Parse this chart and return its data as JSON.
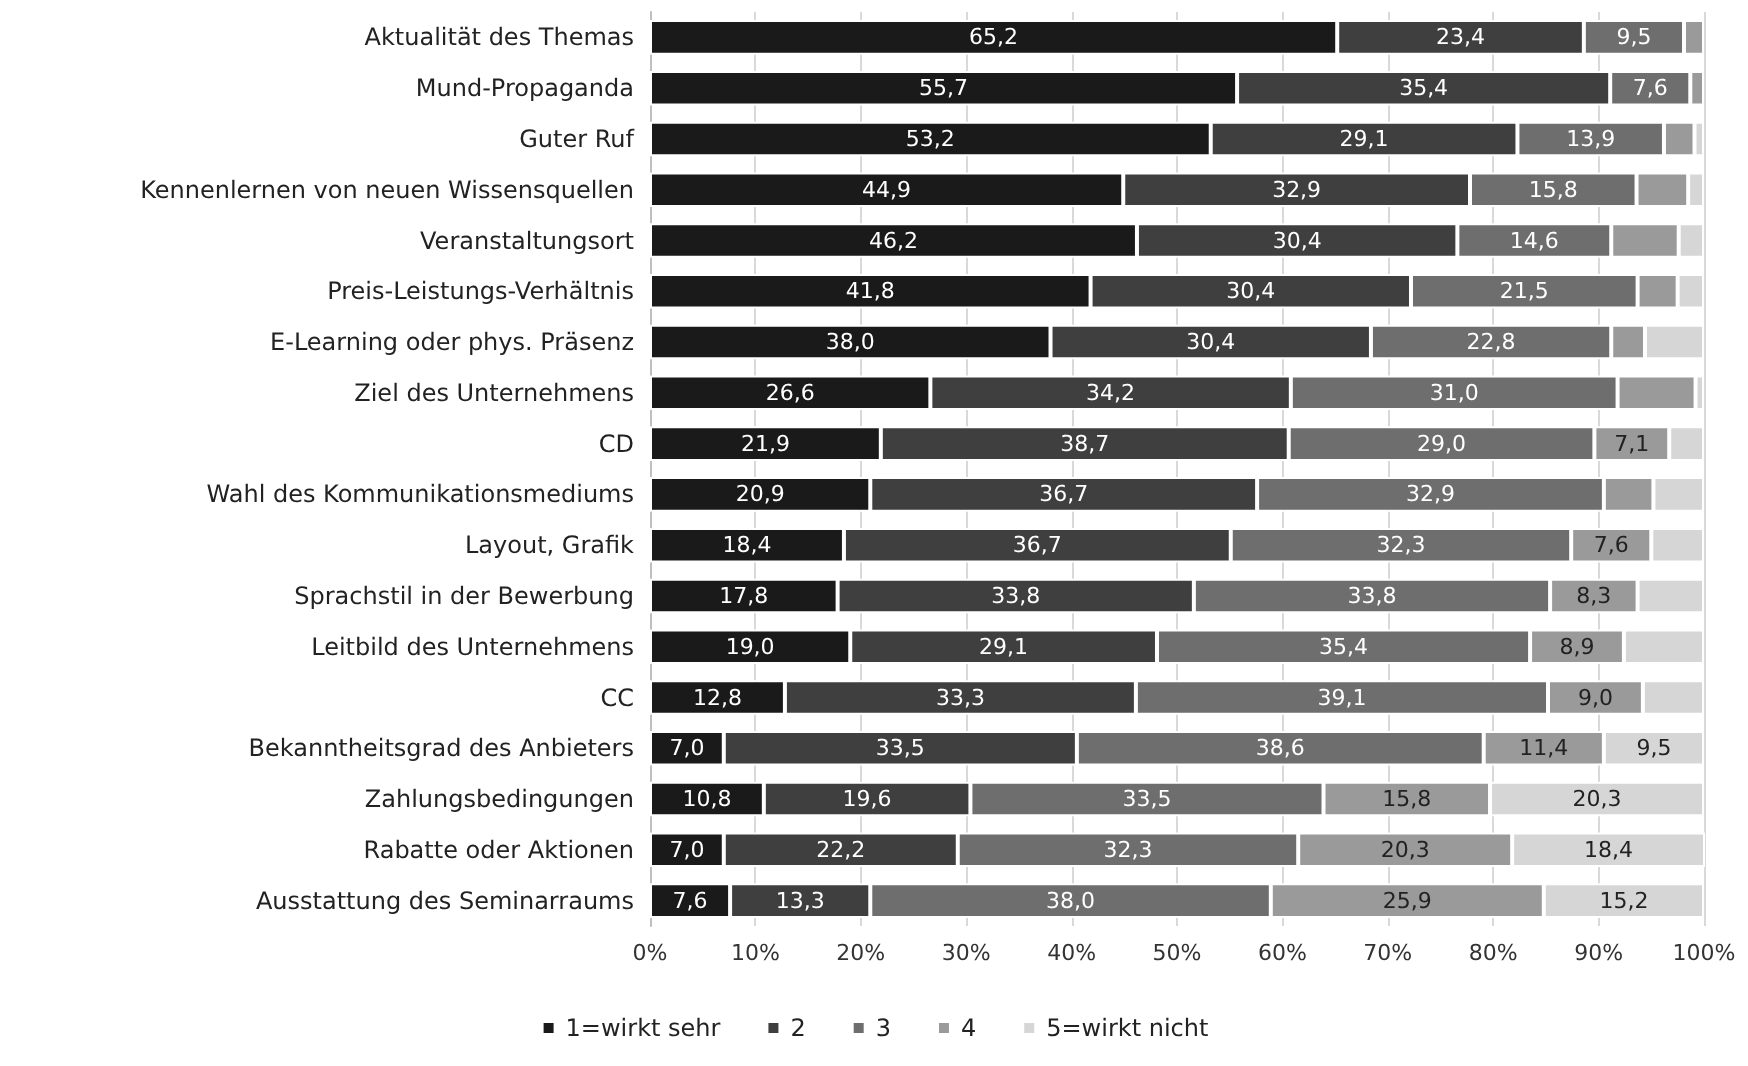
{
  "chart_data": {
    "type": "bar",
    "orientation": "horizontal",
    "stacked": true,
    "categories": [
      "Aktualität des Themas",
      "Mund-Propaganda",
      "Guter Ruf",
      "Kennenlernen von neuen Wissensquellen",
      "Veranstaltungsort",
      "Preis-Leistungs-Verhältnis",
      "E-Learning oder phys. Präsenz",
      "Ziel des Unternehmens",
      "CD",
      "Wahl des Kommunikationsmediums",
      "Layout, Grafik",
      "Sprachstil in der Bewerbung",
      "Leitbild des Unternehmens",
      "CC",
      "Bekanntheitsgrad des Anbieters",
      "Zahlungsbedingungen",
      "Rabatte oder Aktionen",
      "Ausstattung des Seminarraums"
    ],
    "series": [
      {
        "name": "1=wirkt sehr",
        "color": "#1a1a1a",
        "values": [
          65.2,
          55.7,
          53.2,
          44.9,
          46.2,
          41.8,
          38.0,
          26.6,
          21.9,
          20.9,
          18.4,
          17.8,
          19.0,
          12.8,
          7.0,
          10.8,
          7.0,
          7.6
        ],
        "value_labels": [
          "65,2",
          "55,7",
          "53,2",
          "44,9",
          "46,2",
          "41,8",
          "38,0",
          "26,6",
          "21,9",
          "20,9",
          "18,4",
          "17,8",
          "19,0",
          "12,8",
          "7,0",
          "10,8",
          "7,0",
          "7,6"
        ]
      },
      {
        "name": "2",
        "color": "#3f3f3f",
        "values": [
          23.4,
          35.4,
          29.1,
          32.9,
          30.4,
          30.4,
          30.4,
          34.2,
          38.7,
          36.7,
          36.7,
          33.8,
          29.1,
          33.3,
          33.5,
          19.6,
          22.2,
          13.3
        ],
        "value_labels": [
          "23,4",
          "35,4",
          "29,1",
          "32,9",
          "30,4",
          "30,4",
          "30,4",
          "34,2",
          "38,7",
          "36,7",
          "36,7",
          "33,8",
          "29,1",
          "33,3",
          "33,5",
          "19,6",
          "22,2",
          "13,3"
        ]
      },
      {
        "name": "3",
        "color": "#6e6e6e",
        "values": [
          9.5,
          7.6,
          13.9,
          15.8,
          14.6,
          21.5,
          22.8,
          31.0,
          29.0,
          32.9,
          32.3,
          33.8,
          35.4,
          39.1,
          38.6,
          33.5,
          32.3,
          38.0
        ],
        "value_labels": [
          "9,5",
          "7,6",
          "13,9",
          "15,8",
          "14,6",
          "21,5",
          "22,8",
          "31,0",
          "29,0",
          "32,9",
          "32,3",
          "33,8",
          "35,4",
          "39,1",
          "38,6",
          "33,5",
          "32,3",
          "38,0"
        ]
      },
      {
        "name": "4",
        "color": "#9a9a9a",
        "values": [
          1.9,
          1.3,
          2.9,
          4.9,
          6.4,
          3.8,
          3.2,
          7.4,
          7.1,
          4.7,
          7.6,
          8.3,
          8.9,
          9.0,
          11.4,
          15.8,
          20.3,
          25.9
        ],
        "value_labels": [
          null,
          null,
          null,
          null,
          null,
          null,
          null,
          null,
          "7,1",
          null,
          "7,6",
          "8,3",
          "8,9",
          "9,0",
          "11,4",
          "15,8",
          "20,3",
          "25,9"
        ]
      },
      {
        "name": "5=wirkt nicht",
        "color": "#d6d6d6",
        "values": [
          null,
          null,
          0.9,
          1.5,
          2.4,
          2.5,
          5.6,
          0.8,
          3.3,
          4.8,
          5.0,
          6.3,
          7.6,
          5.8,
          9.5,
          20.3,
          18.4,
          15.2
        ],
        "value_labels": [
          null,
          null,
          null,
          null,
          null,
          null,
          null,
          null,
          null,
          null,
          null,
          null,
          null,
          null,
          "9,5",
          "20,3",
          "18,4",
          "15,2"
        ]
      }
    ],
    "xlim": [
      0,
      100
    ],
    "xticks": [
      {
        "value": 0,
        "label": "0%"
      },
      {
        "value": 10,
        "label": "10%"
      },
      {
        "value": 20,
        "label": "20%"
      },
      {
        "value": 30,
        "label": "30%"
      },
      {
        "value": 40,
        "label": "40%"
      },
      {
        "value": 50,
        "label": "50%"
      },
      {
        "value": 60,
        "label": "60%"
      },
      {
        "value": 70,
        "label": "70%"
      },
      {
        "value": 80,
        "label": "80%"
      },
      {
        "value": 90,
        "label": "90%"
      },
      {
        "value": 100,
        "label": "100%"
      }
    ],
    "grid": "x",
    "legend": "bottom"
  }
}
